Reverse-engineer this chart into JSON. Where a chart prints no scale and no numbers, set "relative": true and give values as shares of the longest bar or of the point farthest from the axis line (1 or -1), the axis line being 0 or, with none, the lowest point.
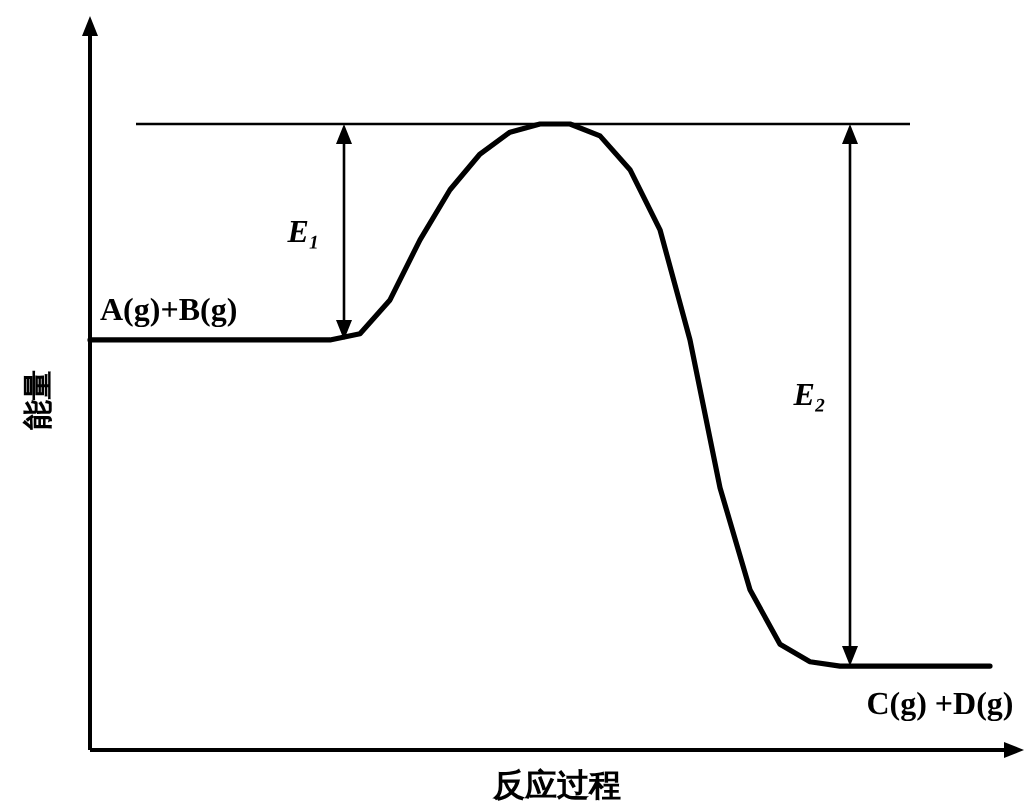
{
  "chart_data": {
    "type": "line",
    "relative": true,
    "xlabel": "反应过程",
    "ylabel": "能量",
    "color": "#000000",
    "categories": [
      null,
      null,
      null,
      null,
      null,
      null,
      null,
      null,
      null,
      null,
      null,
      null,
      null,
      null,
      null,
      null,
      null,
      null,
      null,
      null,
      null,
      null,
      null,
      null,
      null,
      null,
      null,
      null,
      null,
      null,
      null
    ],
    "values": [
      0.655,
      0.655,
      0.655,
      0.655,
      0.655,
      0.655,
      0.655,
      0.655,
      0.655,
      0.665,
      0.719,
      0.815,
      0.895,
      0.952,
      0.987,
      1,
      1,
      0.981,
      0.927,
      0.831,
      0.655,
      0.419,
      0.256,
      0.169,
      0.141,
      0.134,
      0.134,
      0.134,
      0.134,
      0.134,
      0.134
    ],
    "ref_lines": [
      {
        "axis": "y",
        "value": 1,
        "color": "#000000"
      }
    ],
    "annotations": [
      "A(g)+B(g)",
      "C(g) +D(g)",
      "E₁",
      "E₂"
    ]
  }
}
